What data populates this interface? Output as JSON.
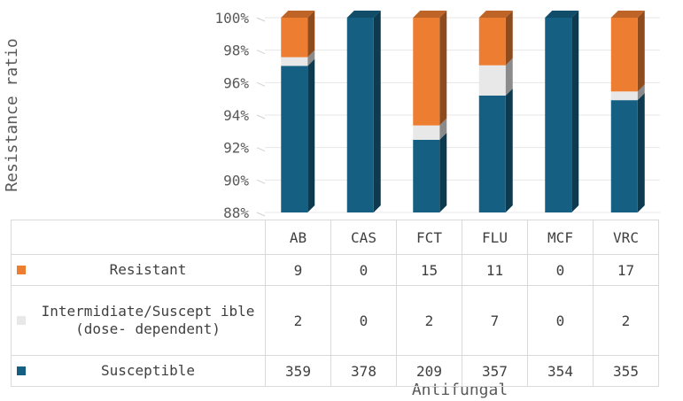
{
  "chart_data": {
    "type": "bar",
    "stacked": true,
    "normalized": true,
    "categories": [
      "AB",
      "CAS",
      "FCT",
      "FLU",
      "MCF",
      "VRC"
    ],
    "series": [
      {
        "name": "Resistant",
        "values": [
          9,
          0,
          15,
          11,
          0,
          17
        ],
        "color": "#ed7d31"
      },
      {
        "name": "Intermidiate/Susceptible (dose-dependent)",
        "values": [
          2,
          0,
          2,
          7,
          0,
          2
        ],
        "color": "#e8e8e8"
      },
      {
        "name": "Susceptible",
        "values": [
          359,
          378,
          209,
          357,
          354,
          355
        ],
        "color": "#156082"
      }
    ],
    "ylabel": "Resistance ratio",
    "xlabel": "Antifungal",
    "ylim": [
      88,
      100
    ],
    "yticks": [
      "88%",
      "90%",
      "92%",
      "94%",
      "96%",
      "98%",
      "100%"
    ],
    "data_table": true,
    "table_labels": [
      "Resistant",
      "Intermidiate/Suscept ible (dose- dependent)",
      "Susceptible"
    ]
  }
}
